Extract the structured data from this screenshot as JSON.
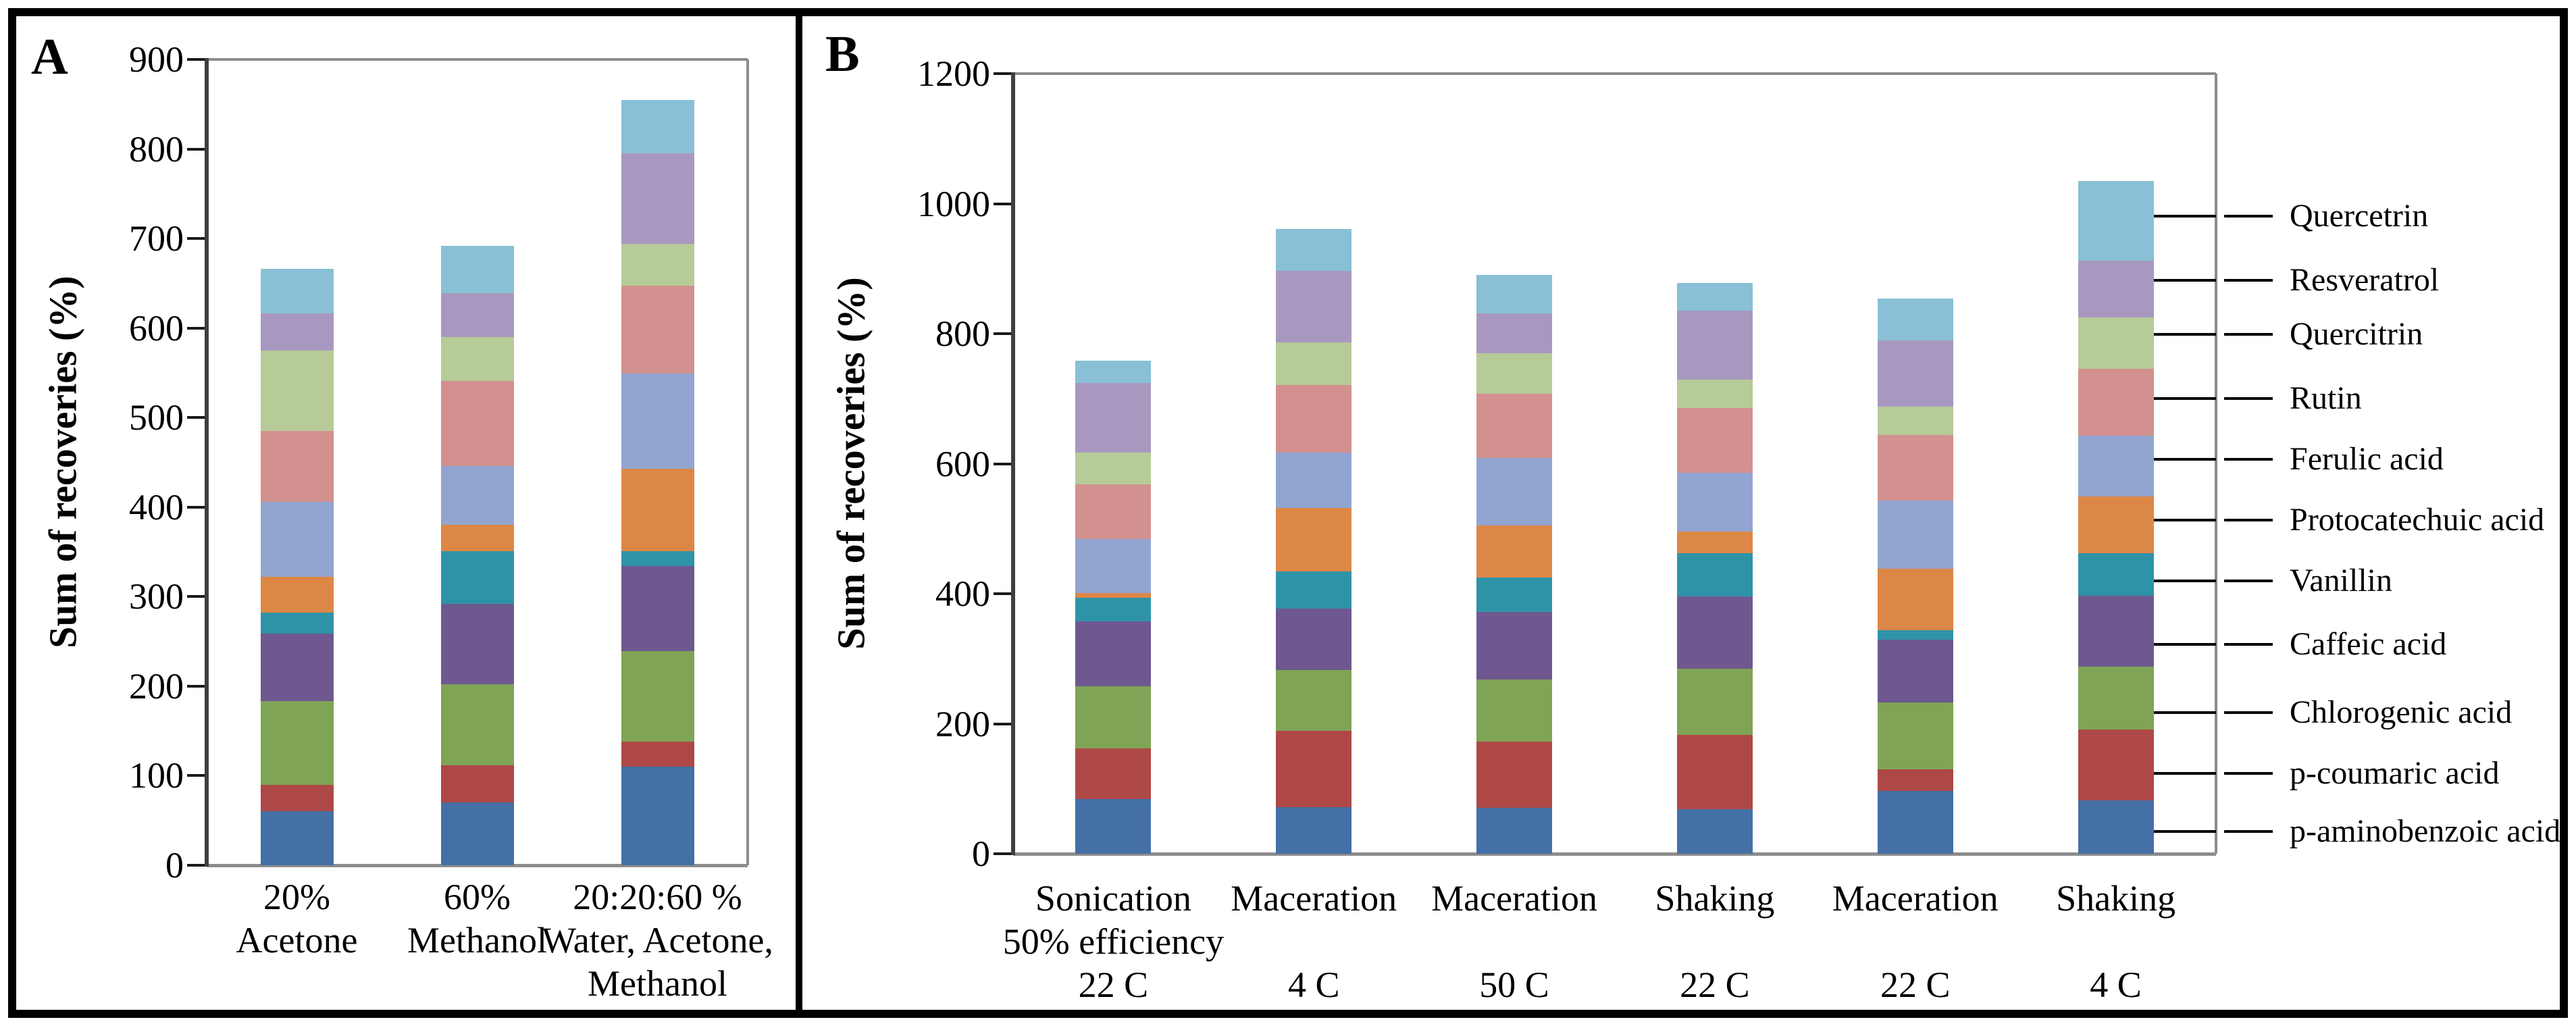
{
  "figure_title": "Sum of recoveries stacked bar charts",
  "chart_data": [
    {
      "type": "bar",
      "subtype": "stacked",
      "panel_label": "A",
      "y_axis_title": "Sum of recoveries (%)",
      "ylim": [
        0,
        900
      ],
      "yticks": [
        0,
        100,
        200,
        300,
        400,
        500,
        600,
        700,
        800,
        900
      ],
      "grid": "off",
      "categories": [
        {
          "lines": [
            "20%",
            "Acetone"
          ]
        },
        {
          "lines": [
            "60%",
            "Methanol"
          ]
        },
        {
          "lines": [
            "20:20:60 %",
            "Water, Acetone,",
            "Methanol"
          ]
        }
      ],
      "series": [
        {
          "name": "p-aminobenzoic acid",
          "color": "#4470A6",
          "values": [
            60,
            70,
            110
          ]
        },
        {
          "name": "p-coumaric acid",
          "color": "#AE4846",
          "values": [
            30,
            42,
            28
          ]
        },
        {
          "name": "Chlorogenic acid",
          "color": "#7FA456",
          "values": [
            93,
            90,
            101
          ]
        },
        {
          "name": "Caffeic acid",
          "color": "#6F5890",
          "values": [
            76,
            90,
            95
          ]
        },
        {
          "name": "Vanillin",
          "color": "#2F93A8",
          "values": [
            23,
            59,
            17
          ]
        },
        {
          "name": "Protocatechuic acid",
          "color": "#DD8747",
          "values": [
            40,
            29,
            92
          ]
        },
        {
          "name": "Ferulic acid",
          "color": "#92A5D1",
          "values": [
            84,
            66,
            106
          ]
        },
        {
          "name": "Rutin",
          "color": "#D2908F",
          "values": [
            79,
            95,
            98
          ]
        },
        {
          "name": "Quercitrin",
          "color": "#B6CB97",
          "values": [
            90,
            49,
            47
          ]
        },
        {
          "name": "Resveratrol",
          "color": "#A898C0",
          "values": [
            41,
            49,
            101
          ]
        },
        {
          "name": "Quercetrin",
          "color": "#89C0D5",
          "values": [
            50,
            53,
            60
          ]
        }
      ],
      "bar_totals": [
        666,
        692,
        855
      ]
    },
    {
      "type": "bar",
      "subtype": "stacked",
      "panel_label": "B",
      "y_axis_title": "Sum of recoveries (%)",
      "ylim": [
        0,
        1200
      ],
      "yticks": [
        0,
        200,
        400,
        600,
        800,
        1000,
        1200
      ],
      "grid": "off",
      "categories": [
        {
          "lines": [
            "Sonication",
            "50% efficiency",
            "22 C"
          ]
        },
        {
          "lines": [
            "Maceration",
            "",
            "4 C"
          ]
        },
        {
          "lines": [
            "Maceration",
            "",
            "50 C"
          ]
        },
        {
          "lines": [
            "Shaking",
            "",
            "22 C"
          ]
        },
        {
          "lines": [
            "Maceration",
            "",
            "22 C"
          ]
        },
        {
          "lines": [
            "Shaking",
            "",
            "4 C"
          ]
        }
      ],
      "series": [
        {
          "name": "p-aminobenzoic acid",
          "color": "#4470A6",
          "values": [
            84,
            72,
            71,
            69,
            97,
            82
          ]
        },
        {
          "name": "p-coumaric acid",
          "color": "#AE4846",
          "values": [
            78,
            117,
            101,
            114,
            33,
            109
          ]
        },
        {
          "name": "Chlorogenic acid",
          "color": "#7FA456",
          "values": [
            96,
            94,
            96,
            102,
            103,
            97
          ]
        },
        {
          "name": "Caffeic acid",
          "color": "#6F5890",
          "values": [
            99,
            94,
            104,
            111,
            96,
            109
          ]
        },
        {
          "name": "Vanillin",
          "color": "#2F93A8",
          "values": [
            37,
            57,
            53,
            66,
            15,
            65
          ]
        },
        {
          "name": "Protocatechuic acid",
          "color": "#DD8747",
          "values": [
            7,
            98,
            80,
            34,
            94,
            88
          ]
        },
        {
          "name": "Ferulic acid",
          "color": "#92A5D1",
          "values": [
            83,
            85,
            104,
            90,
            105,
            93
          ]
        },
        {
          "name": "Rutin",
          "color": "#D2908F",
          "values": [
            84,
            104,
            99,
            100,
            101,
            103
          ]
        },
        {
          "name": "Quercitrin",
          "color": "#B6CB97",
          "values": [
            49,
            66,
            62,
            43,
            44,
            79
          ]
        },
        {
          "name": "Resveratrol",
          "color": "#A898C0",
          "values": [
            107,
            110,
            61,
            106,
            102,
            87
          ]
        },
        {
          "name": "Quercetrin",
          "color": "#89C0D5",
          "values": [
            34,
            64,
            59,
            43,
            64,
            123
          ]
        }
      ],
      "bar_totals": [
        758,
        961,
        890,
        878,
        854,
        1035
      ],
      "legend_position": "right",
      "legend": [
        {
          "label": "Quercetrin",
          "anchor_value": 981
        },
        {
          "label": "Resveratrol",
          "anchor_value": 882
        },
        {
          "label": "Quercitrin",
          "anchor_value": 799
        },
        {
          "label": "Rutin",
          "anchor_value": 700
        },
        {
          "label": "Ferulic acid",
          "anchor_value": 607
        },
        {
          "label": "Protocatechuic acid",
          "anchor_value": 513
        },
        {
          "label": "Vanillin",
          "anchor_value": 420
        },
        {
          "label": "Caffeic acid",
          "anchor_value": 322
        },
        {
          "label": "Chlorogenic acid",
          "anchor_value": 217
        },
        {
          "label": "p-coumaric acid",
          "anchor_value": 124
        },
        {
          "label": "p-aminobenzoic acid",
          "anchor_value": 34
        }
      ]
    }
  ]
}
